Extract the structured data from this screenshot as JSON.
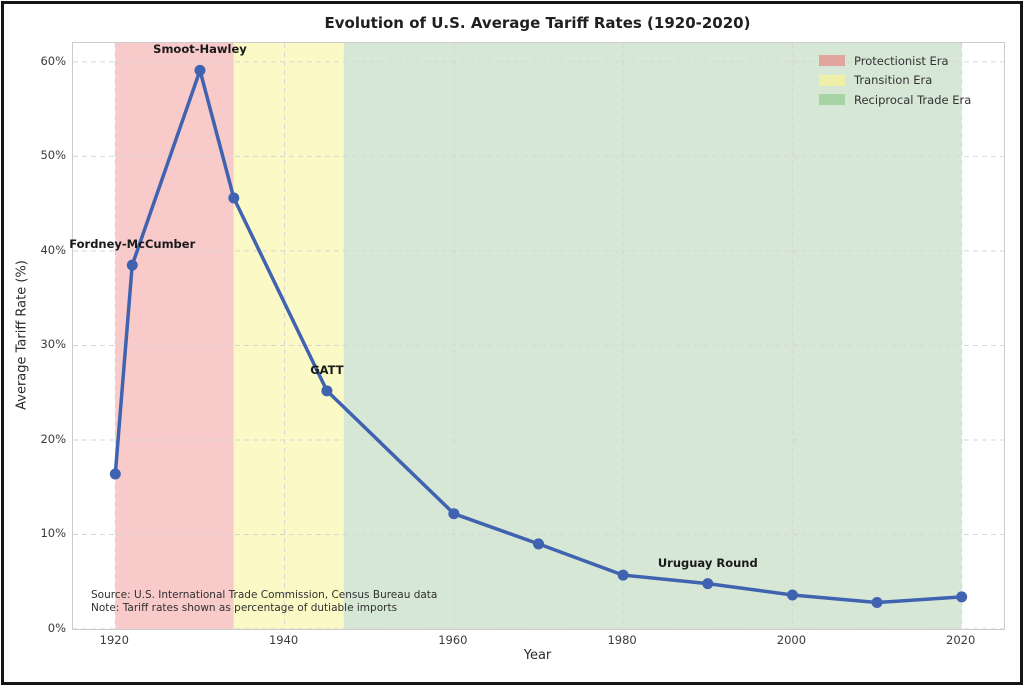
{
  "figure": {
    "source_line1": "Source: U.S. International Trade Commission, Census Bureau data",
    "source_line2": "Note: Tariff rates shown as percentage of dutiable imports"
  },
  "chart_data": {
    "type": "line",
    "title": "Evolution of U.S. Average Tariff Rates (1920-2020)",
    "xlabel": "Year",
    "ylabel": "Average Tariff Rate (%)",
    "x": [
      1920,
      1922,
      1930,
      1934,
      1945,
      1960,
      1970,
      1980,
      1990,
      2000,
      2010,
      2020
    ],
    "y": [
      16.4,
      38.5,
      59.1,
      45.6,
      25.2,
      12.2,
      9.0,
      5.7,
      4.8,
      3.6,
      2.8,
      3.4
    ],
    "xlim": [
      1915,
      2025
    ],
    "ylim": [
      0,
      62
    ],
    "xticks": [
      1920,
      1940,
      1960,
      1980,
      2000,
      2020
    ],
    "yticks": [
      0,
      10,
      20,
      30,
      40,
      50,
      60
    ],
    "ytick_suffix": "%",
    "grid": "dashed",
    "grid_color": "#d6d6d6",
    "line_color": "#3f63b0",
    "marker": "circle",
    "annotations": [
      {
        "label": "Fordney-McCumber",
        "x": 1922,
        "y": 38.5
      },
      {
        "label": "Smoot-Hawley",
        "x": 1930,
        "y": 59.1
      },
      {
        "label": "GATT",
        "x": 1945,
        "y": 25.2
      },
      {
        "label": "Uruguay Round",
        "x": 1990,
        "y": 4.8
      }
    ],
    "regions": [
      {
        "label": "Protectionist Era",
        "start": 1920,
        "end": 1934,
        "fill": "#f8caca",
        "legend_color": "#e2a59d"
      },
      {
        "label": "Transition Era",
        "start": 1934,
        "end": 1947,
        "fill": "#fbf9c6",
        "legend_color": "#eff0a8"
      },
      {
        "label": "Reciprocal Trade Era",
        "start": 1947,
        "end": 2020,
        "fill": "#d6e7d5",
        "legend_color": "#a8d3a5"
      }
    ],
    "legend_position": "top-right"
  }
}
